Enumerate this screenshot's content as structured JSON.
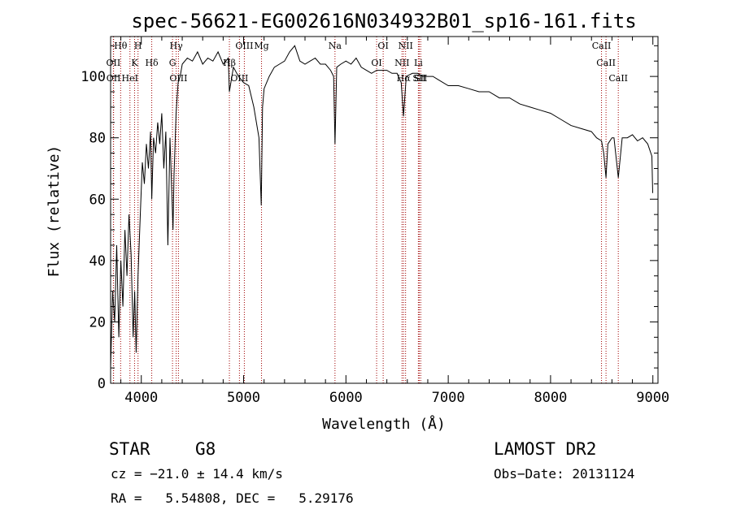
{
  "chart_data": {
    "type": "line",
    "title": "spec-56621-EG002616N034932B01_sp16-161.fits",
    "xlabel": "Wavelength (Å)",
    "ylabel": "Flux (relative)",
    "xlim": [
      3700,
      9050
    ],
    "ylim": [
      0,
      113
    ],
    "xticks": [
      4000,
      5000,
      6000,
      7000,
      8000,
      9000
    ],
    "yticks": [
      0,
      20,
      40,
      60,
      80,
      100
    ],
    "grid": false,
    "series": [
      {
        "x": [
          3700,
          3720,
          3740,
          3760,
          3780,
          3800,
          3820,
          3840,
          3860,
          3880,
          3900,
          3920,
          3935,
          3950,
          3968,
          3990,
          4010,
          4030,
          4050,
          4070,
          4090,
          4102,
          4120,
          4140,
          4160,
          4180,
          4200,
          4220,
          4240,
          4260,
          4280,
          4300,
          4310,
          4320,
          4340,
          4360,
          4380,
          4400,
          4450,
          4500,
          4550,
          4600,
          4650,
          4700,
          4750,
          4800,
          4850,
          4861,
          4900,
          4950,
          5000,
          5050,
          5100,
          5150,
          5172,
          5185,
          5200,
          5250,
          5300,
          5350,
          5400,
          5450,
          5500,
          5550,
          5600,
          5650,
          5700,
          5750,
          5800,
          5850,
          5880,
          5893,
          5910,
          5950,
          6000,
          6050,
          6100,
          6150,
          6200,
          6250,
          6300,
          6350,
          6400,
          6450,
          6500,
          6540,
          6563,
          6590,
          6650,
          6700,
          6750,
          6800,
          6850,
          6900,
          7000,
          7100,
          7200,
          7300,
          7400,
          7500,
          7600,
          7700,
          7800,
          7900,
          8000,
          8100,
          8200,
          8300,
          8400,
          8450,
          8498,
          8520,
          8542,
          8560,
          8600,
          8620,
          8662,
          8700,
          8750,
          8800,
          8850,
          8900,
          8950,
          8990,
          8998
        ],
        "y": [
          5,
          30,
          20,
          45,
          15,
          40,
          25,
          50,
          35,
          55,
          42,
          15,
          30,
          10,
          35,
          55,
          72,
          65,
          78,
          70,
          82,
          60,
          80,
          75,
          85,
          78,
          88,
          70,
          82,
          45,
          80,
          60,
          50,
          68,
          88,
          98,
          100,
          104,
          106,
          105,
          108,
          104,
          106,
          105,
          108,
          104,
          106,
          95,
          103,
          100,
          98,
          97,
          90,
          80,
          58,
          90,
          96,
          100,
          103,
          104,
          105,
          108,
          110,
          105,
          104,
          105,
          106,
          104,
          104,
          102,
          100,
          78,
          103,
          104,
          105,
          104,
          106,
          103,
          102,
          101,
          102,
          102,
          102,
          101,
          101,
          98,
          87,
          100,
          101,
          101,
          100,
          100,
          100,
          99,
          97,
          97,
          96,
          95,
          95,
          93,
          93,
          91,
          90,
          89,
          88,
          86,
          84,
          83,
          82,
          80,
          79,
          75,
          67,
          78,
          80,
          80,
          67,
          80,
          80,
          81,
          79,
          80,
          78,
          74,
          62
        ]
      }
    ],
    "lines": [
      {
        "label": "Hθ",
        "x": 3798,
        "color": "#a00000"
      },
      {
        "label": "OII",
        "x": 3727,
        "color": "#a00000"
      },
      {
        "label": "OII",
        "x": 3729,
        "color": "#a00000"
      },
      {
        "label": "H",
        "x": 3968,
        "color": "#a00000"
      },
      {
        "label": "K",
        "x": 3934,
        "color": "#a00000"
      },
      {
        "label": "HeI",
        "x": 3889,
        "color": "#a00000"
      },
      {
        "label": "Hδ",
        "x": 4102,
        "color": "#a00000"
      },
      {
        "label": "Hγ",
        "x": 4341,
        "color": "#a00000"
      },
      {
        "label": "G",
        "x": 4305,
        "color": "#a00000"
      },
      {
        "label": "OIII",
        "x": 4363,
        "color": "#a00000"
      },
      {
        "label": "OIII",
        "x": 5007,
        "color": "#a00000"
      },
      {
        "label": "Hβ",
        "x": 4861,
        "color": "#a00000"
      },
      {
        "label": "OIII",
        "x": 4959,
        "color": "#a00000"
      },
      {
        "label": "Mg",
        "x": 5175,
        "color": "#a00000"
      },
      {
        "label": "Na",
        "x": 5893,
        "color": "#a00000"
      },
      {
        "label": "OI",
        "x": 6364,
        "color": "#a00000"
      },
      {
        "label": "OI",
        "x": 6300,
        "color": "#a00000"
      },
      {
        "label": "NII",
        "x": 6548,
        "color": "#a00000"
      },
      {
        "label": "NII",
        "x": 6583,
        "color": "#a00000"
      },
      {
        "label": "Hα",
        "x": 6563,
        "color": "#a00000"
      },
      {
        "label": "Li",
        "x": 6708,
        "color": "#a00000"
      },
      {
        "label": "SII",
        "x": 6717,
        "color": "#a00000"
      },
      {
        "label": "SII",
        "x": 6731,
        "color": "#a00000"
      },
      {
        "label": "CaII",
        "x": 8498,
        "color": "#a00000"
      },
      {
        "label": "CaII",
        "x": 8542,
        "color": "#a00000"
      },
      {
        "label": "CaII",
        "x": 8662,
        "color": "#a00000"
      }
    ]
  },
  "info": {
    "class": "STAR",
    "subclass": "G8",
    "survey": "LAMOST DR2",
    "cz": "cz = −21.0 ± 14.4 km/s",
    "obs_date": "Obs−Date: 20131124",
    "radec": "RA =   5.54808, DEC =   5.29176"
  }
}
